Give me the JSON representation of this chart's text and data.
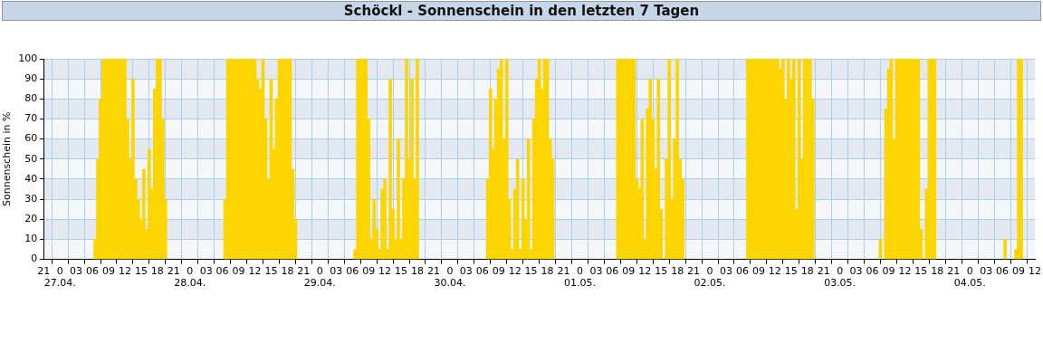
{
  "chart_data": {
    "type": "bar",
    "title": "Schöckl - Sonnenschein in den letzten 7 Tagen",
    "ylabel": "Sonnenschein in %",
    "x": [
      "--04-27T06:30",
      "--04-27T07:00",
      "--04-27T07:30",
      "--04-27T08:00",
      "--04-27T08:30",
      "--04-27T09:00",
      "--04-27T09:30",
      "--04-27T10:00",
      "--04-27T10:30",
      "--04-27T11:00",
      "--04-27T11:30",
      "--04-27T12:00",
      "--04-27T12:30",
      "--04-27T13:00",
      "--04-27T13:30",
      "--04-27T14:00",
      "--04-27T14:30",
      "--04-27T15:00",
      "--04-27T15:30",
      "--04-27T16:00",
      "--04-27T16:30",
      "--04-27T17:00",
      "--04-27T17:30",
      "--04-27T18:00",
      "--04-27T18:30",
      "--04-27T19:00",
      "--04-27T19:30",
      "--04-28T06:30",
      "--04-28T07:00",
      "--04-28T07:30",
      "--04-28T08:00",
      "--04-28T08:30",
      "--04-28T09:00",
      "--04-28T09:30",
      "--04-28T10:00",
      "--04-28T10:30",
      "--04-28T11:00",
      "--04-28T11:30",
      "--04-28T12:00",
      "--04-28T12:30",
      "--04-28T13:00",
      "--04-28T13:30",
      "--04-28T14:00",
      "--04-28T14:30",
      "--04-28T15:00",
      "--04-28T15:30",
      "--04-28T16:00",
      "--04-28T16:30",
      "--04-28T17:00",
      "--04-28T17:30",
      "--04-28T18:00",
      "--04-28T18:30",
      "--04-28T19:00",
      "--04-28T19:30",
      "--04-29T06:30",
      "--04-29T07:00",
      "--04-29T07:30",
      "--04-29T08:00",
      "--04-29T08:30",
      "--04-29T09:00",
      "--04-29T09:30",
      "--04-29T10:00",
      "--04-29T10:30",
      "--04-29T11:00",
      "--04-29T11:30",
      "--04-29T12:00",
      "--04-29T12:30",
      "--04-29T13:00",
      "--04-29T13:30",
      "--04-29T14:00",
      "--04-29T14:30",
      "--04-29T15:00",
      "--04-29T15:30",
      "--04-29T16:00",
      "--04-29T16:30",
      "--04-29T17:00",
      "--04-29T17:30",
      "--04-29T18:00",
      "--04-30T07:00",
      "--04-30T07:30",
      "--04-30T08:00",
      "--04-30T08:30",
      "--04-30T09:00",
      "--04-30T09:30",
      "--04-30T10:00",
      "--04-30T10:30",
      "--04-30T11:00",
      "--04-30T11:30",
      "--04-30T12:00",
      "--04-30T12:30",
      "--04-30T13:00",
      "--04-30T13:30",
      "--04-30T14:00",
      "--04-30T14:30",
      "--04-30T15:00",
      "--04-30T15:30",
      "--04-30T16:00",
      "--04-30T16:30",
      "--04-30T17:00",
      "--04-30T17:30",
      "--04-30T18:00",
      "--04-30T18:30",
      "--04-30T19:00",
      "--05-01T07:00",
      "--05-01T07:30",
      "--05-01T08:00",
      "--05-01T08:30",
      "--05-01T09:00",
      "--05-01T09:30",
      "--05-01T10:00",
      "--05-01T10:30",
      "--05-01T11:00",
      "--05-01T11:30",
      "--05-01T12:00",
      "--05-01T12:30",
      "--05-01T13:00",
      "--05-01T13:30",
      "--05-01T14:00",
      "--05-01T14:30",
      "--05-01T15:00",
      "--05-01T16:00",
      "--05-01T16:30",
      "--05-01T17:00",
      "--05-01T17:30",
      "--05-01T18:00",
      "--05-01T18:30",
      "--05-01T19:00",
      "--05-02T07:00",
      "--05-02T07:30",
      "--05-02T08:00",
      "--05-02T08:30",
      "--05-02T09:00",
      "--05-02T09:30",
      "--05-02T10:00",
      "--05-02T10:30",
      "--05-02T11:00",
      "--05-02T11:30",
      "--05-02T12:00",
      "--05-02T12:30",
      "--05-02T13:00",
      "--05-02T13:30",
      "--05-02T14:00",
      "--05-02T14:30",
      "--05-02T15:00",
      "--05-02T15:30",
      "--05-02T16:00",
      "--05-02T16:30",
      "--05-02T17:00",
      "--05-02T17:30",
      "--05-02T18:00",
      "--05-02T18:30",
      "--05-02T19:00",
      "--05-03T07:30",
      "--05-03T08:30",
      "--05-03T09:00",
      "--05-03T09:30",
      "--05-03T10:00",
      "--05-03T10:30",
      "--05-03T11:00",
      "--05-03T11:30",
      "--05-03T12:00",
      "--05-03T12:30",
      "--05-03T13:00",
      "--05-03T13:30",
      "--05-03T14:00",
      "--05-03T14:30",
      "--05-03T15:00",
      "--05-03T16:00",
      "--05-03T16:30",
      "--05-03T17:00",
      "--05-03T17:30",
      "--05-04T06:30",
      "--05-04T08:30",
      "--05-04T09:00",
      "--05-04T09:30"
    ],
    "series": [
      {
        "color": "#fdd500",
        "values": [
          10,
          50,
          80,
          100,
          100,
          100,
          100,
          100,
          100,
          100,
          100,
          100,
          70,
          50,
          90,
          40,
          30,
          20,
          45,
          15,
          55,
          35,
          85,
          100,
          100,
          70,
          30,
          30,
          100,
          100,
          100,
          100,
          100,
          100,
          100,
          100,
          100,
          100,
          100,
          90,
          85,
          100,
          70,
          40,
          90,
          55,
          80,
          100,
          100,
          100,
          100,
          100,
          45,
          20,
          5,
          100,
          100,
          100,
          100,
          70,
          10,
          30,
          15,
          5,
          35,
          40,
          5,
          90,
          25,
          10,
          60,
          10,
          40,
          100,
          50,
          90,
          40,
          100,
          40,
          85,
          55,
          80,
          95,
          100,
          60,
          100,
          30,
          5,
          35,
          50,
          5,
          40,
          20,
          60,
          5,
          70,
          90,
          100,
          85,
          100,
          100,
          60,
          50,
          100,
          100,
          100,
          100,
          100,
          100,
          100,
          40,
          35,
          70,
          10,
          75,
          90,
          70,
          45,
          90,
          25,
          50,
          100,
          30,
          60,
          100,
          50,
          40,
          100,
          100,
          100,
          100,
          100,
          100,
          100,
          100,
          100,
          100,
          100,
          100,
          95,
          100,
          80,
          100,
          90,
          100,
          25,
          100,
          50,
          100,
          100,
          100,
          80,
          10,
          75,
          95,
          100,
          60,
          100,
          100,
          100,
          100,
          100,
          100,
          100,
          100,
          100,
          15,
          35,
          100,
          100,
          100,
          10,
          5,
          100,
          100
        ]
      }
    ],
    "xlim": [
      "--04-26T21:00",
      "--05-04T12:00"
    ],
    "xticks": [
      {
        "value": "--04-26T21:00",
        "label": "21"
      },
      {
        "value": "--04-27T00:00",
        "label": "0\n27.04."
      },
      {
        "value": "--04-27T03:00",
        "label": "03"
      },
      {
        "value": "--04-27T06:00",
        "label": "06"
      },
      {
        "value": "--04-27T09:00",
        "label": "09"
      },
      {
        "value": "--04-27T12:00",
        "label": "12"
      },
      {
        "value": "--04-27T15:00",
        "label": "15"
      },
      {
        "value": "--04-27T18:00",
        "label": "18"
      },
      {
        "value": "--04-27T21:00",
        "label": "21"
      },
      {
        "value": "--04-28T00:00",
        "label": "0\n28.04."
      },
      {
        "value": "--04-28T03:00",
        "label": "03"
      },
      {
        "value": "--04-28T06:00",
        "label": "06"
      },
      {
        "value": "--04-28T09:00",
        "label": "09"
      },
      {
        "value": "--04-28T12:00",
        "label": "12"
      },
      {
        "value": "--04-28T15:00",
        "label": "15"
      },
      {
        "value": "--04-28T18:00",
        "label": "18"
      },
      {
        "value": "--04-28T21:00",
        "label": "21"
      },
      {
        "value": "--04-29T00:00",
        "label": "0\n29.04."
      },
      {
        "value": "--04-29T03:00",
        "label": "03"
      },
      {
        "value": "--04-29T06:00",
        "label": "06"
      },
      {
        "value": "--04-29T09:00",
        "label": "09"
      },
      {
        "value": "--04-29T12:00",
        "label": "12"
      },
      {
        "value": "--04-29T15:00",
        "label": "15"
      },
      {
        "value": "--04-29T18:00",
        "label": "18"
      },
      {
        "value": "--04-29T21:00",
        "label": "21"
      },
      {
        "value": "--04-30T00:00",
        "label": "0\n30.04."
      },
      {
        "value": "--04-30T03:00",
        "label": "03"
      },
      {
        "value": "--04-30T06:00",
        "label": "06"
      },
      {
        "value": "--04-30T09:00",
        "label": "09"
      },
      {
        "value": "--04-30T12:00",
        "label": "12"
      },
      {
        "value": "--04-30T15:00",
        "label": "15"
      },
      {
        "value": "--04-30T18:00",
        "label": "18"
      },
      {
        "value": "--04-30T21:00",
        "label": "21"
      },
      {
        "value": "--05-01T00:00",
        "label": "0\n01.05."
      },
      {
        "value": "--05-01T03:00",
        "label": "03"
      },
      {
        "value": "--05-01T06:00",
        "label": "06"
      },
      {
        "value": "--05-01T09:00",
        "label": "09"
      },
      {
        "value": "--05-01T12:00",
        "label": "12"
      },
      {
        "value": "--05-01T15:00",
        "label": "15"
      },
      {
        "value": "--05-01T18:00",
        "label": "18"
      },
      {
        "value": "--05-01T21:00",
        "label": "21"
      },
      {
        "value": "--05-02T00:00",
        "label": "0\n02.05."
      },
      {
        "value": "--05-02T03:00",
        "label": "03"
      },
      {
        "value": "--05-02T06:00",
        "label": "06"
      },
      {
        "value": "--05-02T09:00",
        "label": "09"
      },
      {
        "value": "--05-02T12:00",
        "label": "12"
      },
      {
        "value": "--05-02T15:00",
        "label": "15"
      },
      {
        "value": "--05-02T18:00",
        "label": "18"
      },
      {
        "value": "--05-02T21:00",
        "label": "21"
      },
      {
        "value": "--05-03T00:00",
        "label": "0\n03.05."
      },
      {
        "value": "--05-03T03:00",
        "label": "03"
      },
      {
        "value": "--05-03T06:00",
        "label": "06"
      },
      {
        "value": "--05-03T09:00",
        "label": "09"
      },
      {
        "value": "--05-03T12:00",
        "label": "12"
      },
      {
        "value": "--05-03T15:00",
        "label": "15"
      },
      {
        "value": "--05-03T18:00",
        "label": "18"
      },
      {
        "value": "--05-03T21:00",
        "label": "21"
      },
      {
        "value": "--05-04T00:00",
        "label": "0\n04.05."
      },
      {
        "value": "--05-04T03:00",
        "label": "03"
      },
      {
        "value": "--05-04T06:00",
        "label": "06"
      },
      {
        "value": "--05-04T09:00",
        "label": "09"
      },
      {
        "value": "--05-04T12:00",
        "label": "12"
      }
    ],
    "ylim": [
      0,
      100
    ],
    "yticks": [
      0,
      10,
      20,
      30,
      40,
      50,
      60,
      70,
      80,
      90,
      100
    ],
    "grid": true
  }
}
